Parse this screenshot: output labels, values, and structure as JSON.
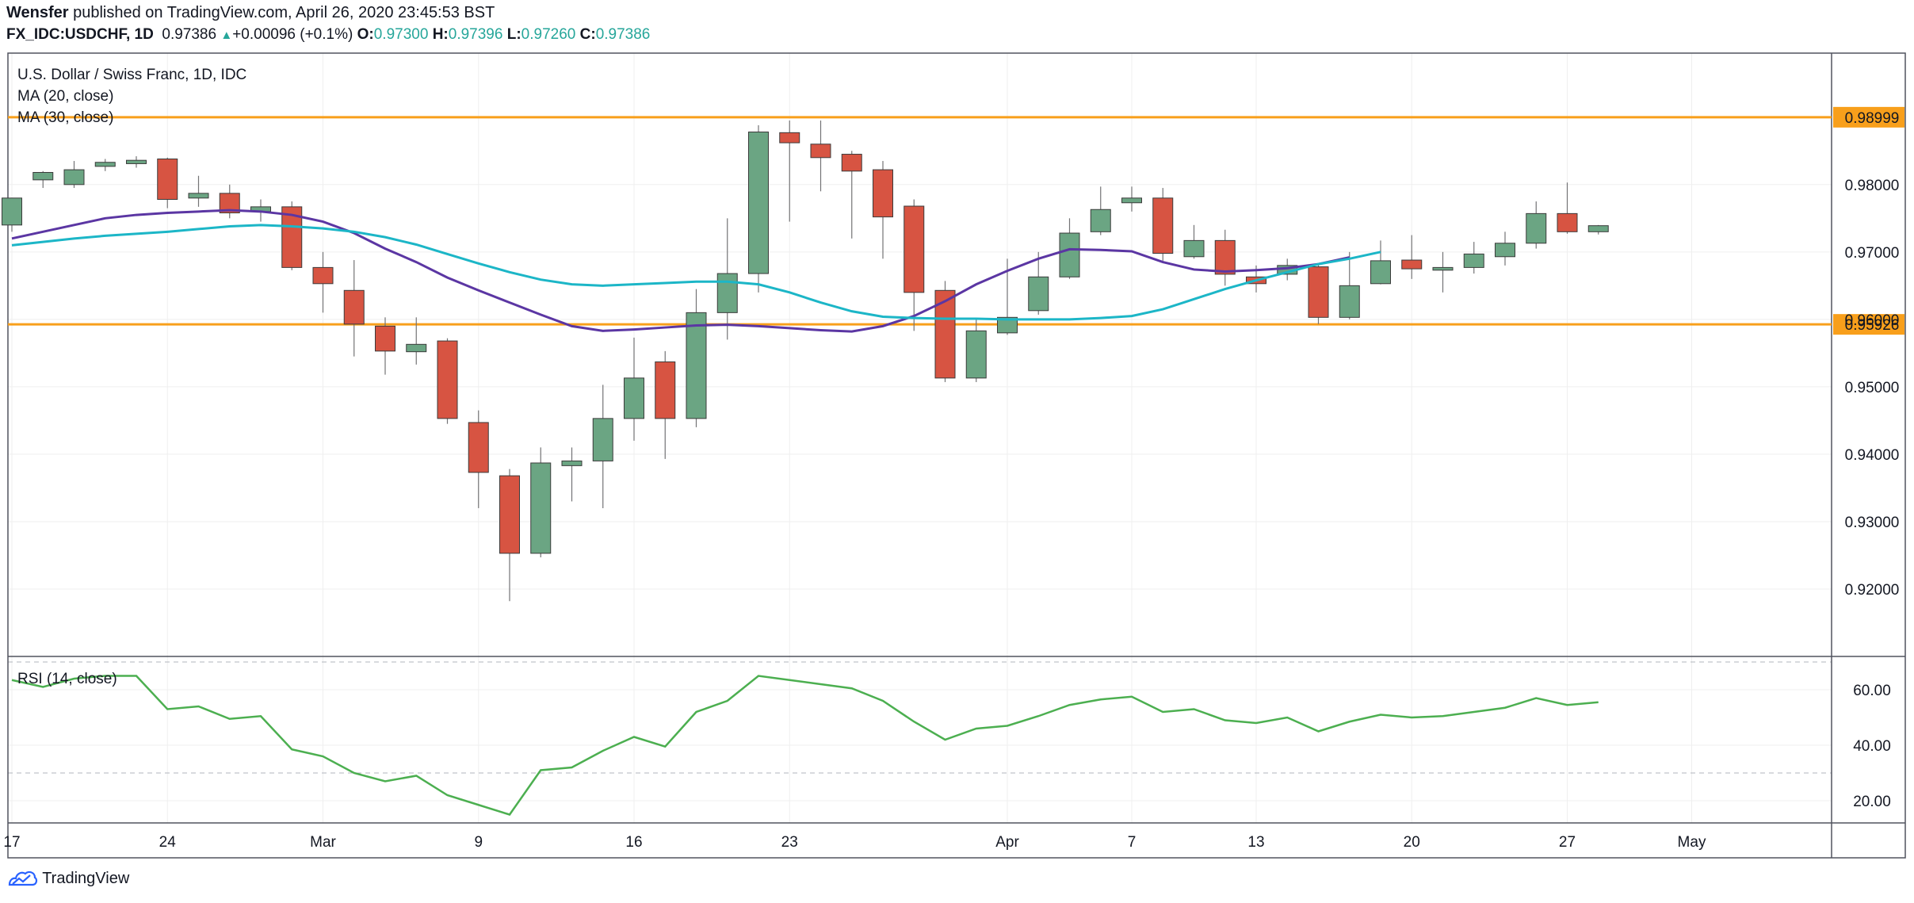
{
  "header": {
    "author": "Wensfer",
    "published_text": "published on TradingView.com, April 26, 2020 23:45:53 BST",
    "symbol": "FX_IDC:USDCHF, 1D",
    "last": "0.97386",
    "change": "+0.00096 (+0.1%)",
    "o_label": "O:",
    "o": "0.97300",
    "h_label": "H:",
    "h": "0.97396",
    "l_label": "L:",
    "l": "0.97260",
    "c_label": "C:",
    "c": "0.97386"
  },
  "footer": {
    "brand": "TradingView"
  },
  "colors": {
    "up": "#6ba583",
    "down": "#d75442",
    "ma20": "#5b36a3",
    "ma30": "#1cb6c7",
    "level": "#f89f1b",
    "rsi": "#4caf50"
  },
  "chart_data": [
    {
      "type": "candlestick",
      "title": "U.S. Dollar / Swiss Franc, 1D, IDC",
      "ylim": [
        0.91,
        0.9995
      ],
      "y_ticks": [
        "0.92000",
        "0.93000",
        "0.94000",
        "0.95000",
        "0.96000",
        "0.97000",
        "0.98000"
      ],
      "x_ticks": [
        {
          "label": "17",
          "i": 0
        },
        {
          "label": "24",
          "i": 5
        },
        {
          "label": "Mar",
          "i": 10
        },
        {
          "label": "9",
          "i": 15
        },
        {
          "label": "16",
          "i": 20
        },
        {
          "label": "23",
          "i": 25
        },
        {
          "label": "Apr",
          "i": 32
        },
        {
          "label": "7",
          "i": 36
        },
        {
          "label": "13",
          "i": 40
        },
        {
          "label": "20",
          "i": 45
        },
        {
          "label": "27",
          "i": 50
        },
        {
          "label": "May",
          "i": 54
        }
      ],
      "candles": [
        {
          "o": 0.974,
          "h": 0.978,
          "l": 0.973,
          "c": 0.978
        },
        {
          "o": 0.9807,
          "h": 0.982,
          "l": 0.9795,
          "c": 0.9818
        },
        {
          "o": 0.98,
          "h": 0.9835,
          "l": 0.9795,
          "c": 0.9822
        },
        {
          "o": 0.9827,
          "h": 0.9838,
          "l": 0.982,
          "c": 0.9833
        },
        {
          "o": 0.9831,
          "h": 0.9842,
          "l": 0.9825,
          "c": 0.9836
        },
        {
          "o": 0.9838,
          "h": 0.984,
          "l": 0.9765,
          "c": 0.9778
        },
        {
          "o": 0.978,
          "h": 0.9813,
          "l": 0.9767,
          "c": 0.9787
        },
        {
          "o": 0.9787,
          "h": 0.98,
          "l": 0.975,
          "c": 0.9758
        },
        {
          "o": 0.976,
          "h": 0.9778,
          "l": 0.9745,
          "c": 0.9767
        },
        {
          "o": 0.9767,
          "h": 0.9775,
          "l": 0.9673,
          "c": 0.9677
        },
        {
          "o": 0.9677,
          "h": 0.97,
          "l": 0.961,
          "c": 0.9653
        },
        {
          "o": 0.9643,
          "h": 0.9688,
          "l": 0.9545,
          "c": 0.9593
        },
        {
          "o": 0.959,
          "h": 0.9603,
          "l": 0.9518,
          "c": 0.9553
        },
        {
          "o": 0.9552,
          "h": 0.9603,
          "l": 0.9533,
          "c": 0.9563
        },
        {
          "o": 0.9568,
          "h": 0.9572,
          "l": 0.9445,
          "c": 0.9453
        },
        {
          "o": 0.9447,
          "h": 0.9465,
          "l": 0.932,
          "c": 0.9373
        },
        {
          "o": 0.9368,
          "h": 0.9378,
          "l": 0.9182,
          "c": 0.9253
        },
        {
          "o": 0.9253,
          "h": 0.941,
          "l": 0.9247,
          "c": 0.9387
        },
        {
          "o": 0.9383,
          "h": 0.941,
          "l": 0.933,
          "c": 0.939
        },
        {
          "o": 0.939,
          "h": 0.9503,
          "l": 0.932,
          "c": 0.9453
        },
        {
          "o": 0.9453,
          "h": 0.9573,
          "l": 0.942,
          "c": 0.9513
        },
        {
          "o": 0.9537,
          "h": 0.9553,
          "l": 0.9393,
          "c": 0.9453
        },
        {
          "o": 0.9453,
          "h": 0.9645,
          "l": 0.944,
          "c": 0.961
        },
        {
          "o": 0.961,
          "h": 0.975,
          "l": 0.957,
          "c": 0.9668
        },
        {
          "o": 0.9668,
          "h": 0.9888,
          "l": 0.964,
          "c": 0.9878
        },
        {
          "o": 0.9877,
          "h": 0.9895,
          "l": 0.9745,
          "c": 0.9862
        },
        {
          "o": 0.986,
          "h": 0.9895,
          "l": 0.979,
          "c": 0.984
        },
        {
          "o": 0.9845,
          "h": 0.985,
          "l": 0.972,
          "c": 0.982
        },
        {
          "o": 0.9822,
          "h": 0.9835,
          "l": 0.969,
          "c": 0.9752
        },
        {
          "o": 0.9768,
          "h": 0.9778,
          "l": 0.9583,
          "c": 0.964
        },
        {
          "o": 0.9643,
          "h": 0.9657,
          "l": 0.9507,
          "c": 0.9513
        },
        {
          "o": 0.9513,
          "h": 0.96,
          "l": 0.9507,
          "c": 0.9583
        },
        {
          "o": 0.958,
          "h": 0.969,
          "l": 0.9577,
          "c": 0.9603
        },
        {
          "o": 0.9613,
          "h": 0.97,
          "l": 0.9607,
          "c": 0.9663
        },
        {
          "o": 0.9663,
          "h": 0.975,
          "l": 0.966,
          "c": 0.9728
        },
        {
          "o": 0.973,
          "h": 0.9797,
          "l": 0.9725,
          "c": 0.9763
        },
        {
          "o": 0.9773,
          "h": 0.9797,
          "l": 0.976,
          "c": 0.978
        },
        {
          "o": 0.978,
          "h": 0.9795,
          "l": 0.9687,
          "c": 0.9698
        },
        {
          "o": 0.9693,
          "h": 0.974,
          "l": 0.969,
          "c": 0.9717
        },
        {
          "o": 0.9717,
          "h": 0.9733,
          "l": 0.965,
          "c": 0.9667
        },
        {
          "o": 0.9663,
          "h": 0.968,
          "l": 0.964,
          "c": 0.9653
        },
        {
          "o": 0.9667,
          "h": 0.969,
          "l": 0.9658,
          "c": 0.968
        },
        {
          "o": 0.9678,
          "h": 0.9683,
          "l": 0.9593,
          "c": 0.9603
        },
        {
          "o": 0.9603,
          "h": 0.97,
          "l": 0.96,
          "c": 0.965
        },
        {
          "o": 0.9653,
          "h": 0.9717,
          "l": 0.9652,
          "c": 0.9687
        },
        {
          "o": 0.9688,
          "h": 0.9725,
          "l": 0.966,
          "c": 0.9675
        },
        {
          "o": 0.9673,
          "h": 0.97,
          "l": 0.964,
          "c": 0.9677
        },
        {
          "o": 0.9677,
          "h": 0.9715,
          "l": 0.9668,
          "c": 0.9697
        },
        {
          "o": 0.9693,
          "h": 0.973,
          "l": 0.968,
          "c": 0.9713
        },
        {
          "o": 0.9713,
          "h": 0.9775,
          "l": 0.9705,
          "c": 0.9757
        },
        {
          "o": 0.9757,
          "h": 0.9803,
          "l": 0.9727,
          "c": 0.973
        },
        {
          "o": 0.973,
          "h": 0.974,
          "l": 0.9726,
          "c": 0.9739
        }
      ],
      "series": [
        {
          "name": "MA (20, close)",
          "values": [
            0.972,
            0.973,
            0.974,
            0.975,
            0.9755,
            0.9758,
            0.976,
            0.9762,
            0.976,
            0.9755,
            0.9745,
            0.9728,
            0.9705,
            0.9685,
            0.9662,
            0.9643,
            0.9625,
            0.9607,
            0.959,
            0.9583,
            0.9585,
            0.9588,
            0.9591,
            0.9592,
            0.959,
            0.9587,
            0.9584,
            0.9582,
            0.959,
            0.9605,
            0.9627,
            0.9652,
            0.9672,
            0.969,
            0.9704,
            0.9703,
            0.9701,
            0.9685,
            0.9674,
            0.9671,
            0.9673,
            0.9676,
            0.9682,
            0.9692
          ]
        },
        {
          "name": "MA (30, close)",
          "values": [
            0.971,
            0.9715,
            0.972,
            0.9724,
            0.9727,
            0.973,
            0.9734,
            0.9738,
            0.974,
            0.9738,
            0.9735,
            0.973,
            0.9722,
            0.9711,
            0.9697,
            0.9683,
            0.967,
            0.9659,
            0.9652,
            0.965,
            0.9652,
            0.9654,
            0.9656,
            0.9656,
            0.9652,
            0.964,
            0.9625,
            0.9612,
            0.9604,
            0.9602,
            0.9601,
            0.9601,
            0.96,
            0.96,
            0.96,
            0.9602,
            0.9605,
            0.9615,
            0.963,
            0.9645,
            0.9658,
            0.967,
            0.9682,
            0.969,
            0.97
          ]
        }
      ],
      "levels": [
        {
          "label": "0.98999",
          "value": 0.98999
        },
        {
          "label": "0.95926",
          "value": 0.95926
        }
      ]
    },
    {
      "type": "line",
      "title": "RSI (14, close)",
      "ylim": [
        12,
        72
      ],
      "y_ticks": [
        "20.00",
        "40.00",
        "60.00"
      ],
      "bands": [
        70,
        30
      ],
      "series": [
        {
          "name": "RSI (14, close)",
          "values": [
            63.5,
            61,
            64,
            65,
            65,
            53,
            54,
            49.5,
            50.5,
            38.5,
            36,
            30,
            27,
            29,
            22,
            18.5,
            15,
            31,
            32,
            38,
            43,
            39.5,
            52,
            56,
            65,
            63.5,
            62,
            60.5,
            56,
            48.5,
            42,
            46,
            47,
            50.5,
            54.5,
            56.5,
            57.5,
            52,
            53,
            49,
            48,
            50,
            45,
            48.5,
            51,
            50,
            50.5,
            52,
            53.5,
            57,
            54.5,
            55.5
          ]
        }
      ]
    }
  ]
}
